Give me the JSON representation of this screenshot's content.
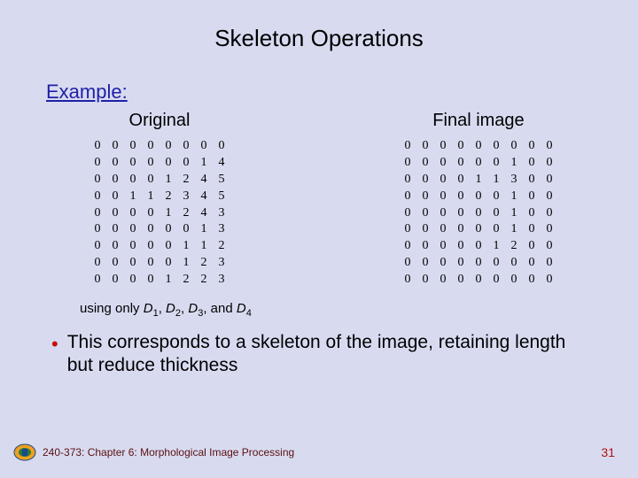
{
  "title": "Skeleton Operations",
  "example_label": "Example:",
  "left": {
    "header": "Original",
    "matrix": [
      [
        0,
        0,
        0,
        0,
        0,
        0,
        0,
        0
      ],
      [
        0,
        0,
        0,
        0,
        0,
        0,
        1,
        4
      ],
      [
        0,
        0,
        0,
        0,
        1,
        2,
        4,
        5
      ],
      [
        0,
        0,
        1,
        1,
        2,
        3,
        4,
        5
      ],
      [
        0,
        0,
        0,
        0,
        1,
        2,
        4,
        3
      ],
      [
        0,
        0,
        0,
        0,
        0,
        0,
        1,
        3
      ],
      [
        0,
        0,
        0,
        0,
        0,
        1,
        1,
        2
      ],
      [
        0,
        0,
        0,
        0,
        0,
        1,
        2,
        3
      ],
      [
        0,
        0,
        0,
        0,
        1,
        2,
        2,
        3
      ]
    ]
  },
  "right": {
    "header": "Final image",
    "matrix": [
      [
        0,
        0,
        0,
        0,
        0,
        0,
        0,
        0,
        0
      ],
      [
        0,
        0,
        0,
        0,
        0,
        0,
        1,
        0,
        0
      ],
      [
        0,
        0,
        0,
        0,
        1,
        1,
        3,
        0,
        0
      ],
      [
        0,
        0,
        0,
        0,
        0,
        0,
        1,
        0,
        0
      ],
      [
        0,
        0,
        0,
        0,
        0,
        0,
        1,
        0,
        0
      ],
      [
        0,
        0,
        0,
        0,
        0,
        0,
        1,
        0,
        0
      ],
      [
        0,
        0,
        0,
        0,
        0,
        1,
        2,
        0,
        0
      ],
      [
        0,
        0,
        0,
        0,
        0,
        0,
        0,
        0,
        0
      ],
      [
        0,
        0,
        0,
        0,
        0,
        0,
        0,
        0,
        0
      ]
    ]
  },
  "using_prefix": "using only ",
  "using_terms": [
    "D",
    "1",
    ", ",
    "D",
    "2",
    ", ",
    "D",
    "3",
    ", and ",
    "D",
    "4"
  ],
  "bullet_text": "This corresponds to a skeleton of the image, retaining length but reduce thickness",
  "footer_text": "240-373: Chapter 6: Morphological Image Processing",
  "page_number": "31",
  "colors": {
    "background": "#d8dbf0",
    "title": "#000000",
    "example": "#2020a8",
    "bullet_dot": "#c41010",
    "footer": "#5a1010",
    "page": "#b01010"
  }
}
